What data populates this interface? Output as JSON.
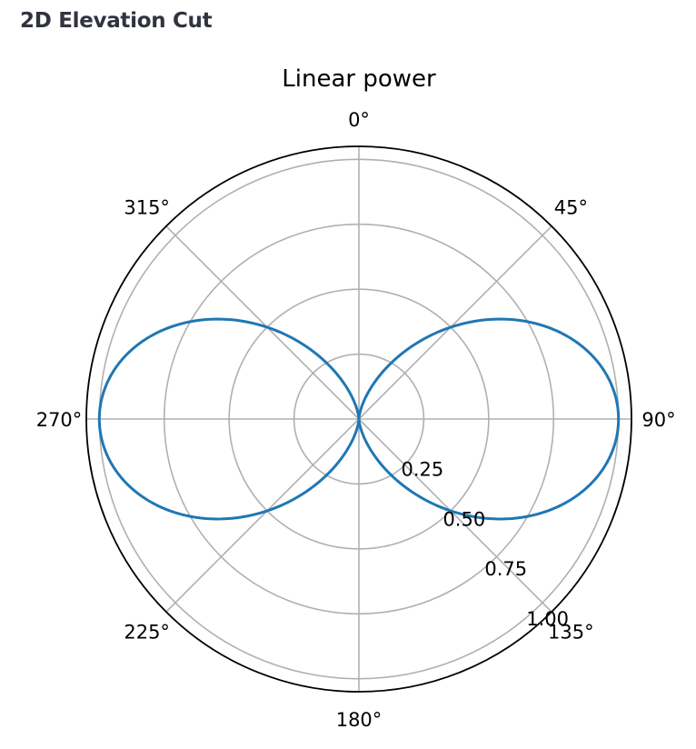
{
  "page": {
    "heading": "2D Elevation Cut"
  },
  "chart_data": {
    "type": "polar-line",
    "title": "Linear power",
    "theta_direction": "clockwise",
    "theta_zero_location": "top",
    "theta_tick_labels": [
      "0°",
      "45°",
      "90°",
      "135°",
      "180°",
      "225°",
      "270°",
      "315°"
    ],
    "theta_ticks_deg": [
      0,
      45,
      90,
      135,
      180,
      225,
      270,
      315
    ],
    "r_ticks": [
      0.25,
      0.5,
      0.75,
      1.0
    ],
    "r_tick_labels": [
      "0.25",
      "0.50",
      "0.75",
      "1.00"
    ],
    "rlim": [
      0,
      1.05
    ],
    "grid": true,
    "series": [
      {
        "color": "#1f77b4",
        "function": "sin^2(theta)",
        "theta_deg": [
          0,
          15,
          30,
          45,
          60,
          75,
          90,
          105,
          120,
          135,
          150,
          165,
          180,
          195,
          210,
          225,
          240,
          255,
          270,
          285,
          300,
          315,
          330,
          345,
          360
        ],
        "r": [
          0,
          0.067,
          0.25,
          0.5,
          0.75,
          0.933,
          1.0,
          0.933,
          0.75,
          0.5,
          0.25,
          0.067,
          0,
          0.067,
          0.25,
          0.5,
          0.75,
          0.933,
          1.0,
          0.933,
          0.75,
          0.5,
          0.25,
          0.067,
          0
        ]
      }
    ]
  }
}
